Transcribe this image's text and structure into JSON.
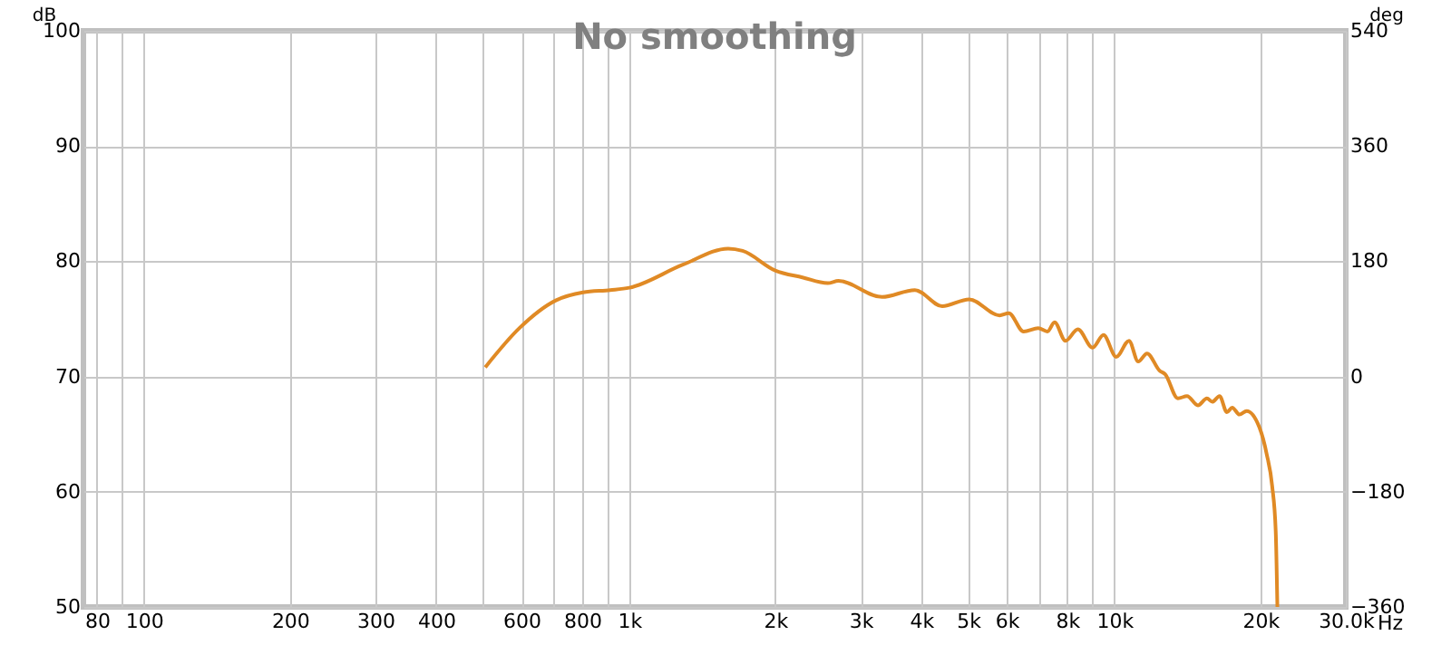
{
  "chart_data": {
    "type": "line",
    "title": "No smoothing",
    "ylabel": "dB",
    "y2label": "deg",
    "log": "x",
    "grid": true,
    "xlim": [
      75,
      30000
    ],
    "ylim": [
      50,
      100
    ],
    "y2lim": [
      -360,
      540
    ],
    "xticks": [
      80,
      {
        "value": 90,
        "label": null
      },
      100,
      200,
      300,
      400,
      {
        "value": 500,
        "label": null
      },
      600,
      {
        "value": 700,
        "label": null
      },
      800,
      {
        "value": 900,
        "label": null
      },
      {
        "value": 1000,
        "label": "1k"
      },
      {
        "value": 2000,
        "label": "2k"
      },
      {
        "value": 3000,
        "label": "3k"
      },
      {
        "value": 4000,
        "label": "4k"
      },
      {
        "value": 5000,
        "label": "5k"
      },
      {
        "value": 6000,
        "label": "6k"
      },
      {
        "value": 7000,
        "label": null
      },
      {
        "value": 8000,
        "label": "8k"
      },
      {
        "value": 9000,
        "label": null
      },
      {
        "value": 10000,
        "label": "10k"
      },
      {
        "value": 20000,
        "label": "20k"
      },
      {
        "value": 30000,
        "label": "30.0k"
      }
    ],
    "xlabel": "Hz",
    "yticks": [
      50,
      60,
      70,
      80,
      90,
      100
    ],
    "y2ticks": [
      -360,
      -180,
      0,
      180,
      360,
      540
    ],
    "series": [
      {
        "color": "#e08a25",
        "x": [
          505,
          594,
          706,
          803,
          914,
          1000,
          1290,
          1600,
          1713,
          2000,
          2275,
          2566,
          2700,
          3320,
          3880,
          4418,
          5020,
          5800,
          6060,
          6500,
          6970,
          7280,
          7530,
          7930,
          8410,
          9020,
          9500,
          10090,
          10720,
          11200,
          11680,
          12400,
          12730,
          13520,
          14120,
          14870,
          15520,
          15920,
          16480,
          17060,
          17500,
          18110,
          18740,
          19900,
          20600,
          21150,
          21510,
          21680
        ],
        "values": [
          70.8,
          74.2,
          76.6,
          77.3,
          77.5,
          77.7,
          79.7,
          81.1,
          80.9,
          79.2,
          78.6,
          78.1,
          78.3,
          76.9,
          77.5,
          76.1,
          76.7,
          75.3,
          75.5,
          73.9,
          74.2,
          73.9,
          74.7,
          73.1,
          74.1,
          72.5,
          73.6,
          71.7,
          73.1,
          71.3,
          72.0,
          70.5,
          70.2,
          68.1,
          68.3,
          67.5,
          68.1,
          67.8,
          68.3,
          66.9,
          67.3,
          66.7,
          67.0,
          65.6,
          63.3,
          60.5,
          56.6,
          50.0
        ]
      }
    ]
  }
}
